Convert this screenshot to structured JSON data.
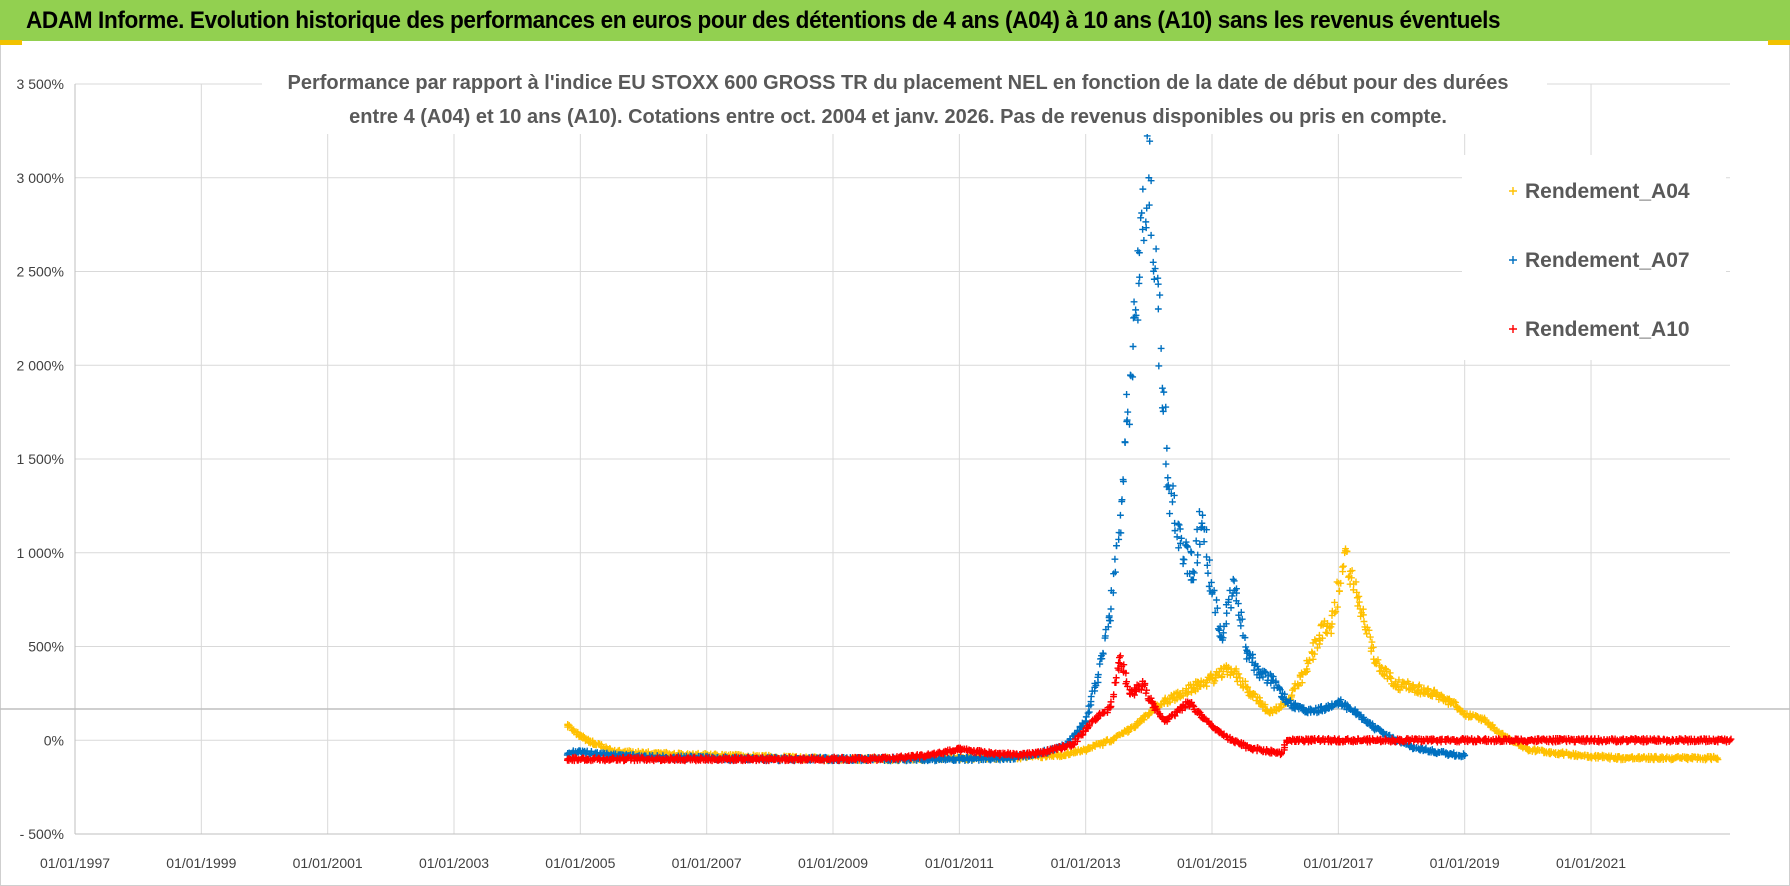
{
  "header": {
    "title": "ADAM Informe. Evolution historique des performances en euros pour des détentions de 4 ans (A04) à 10 ans (A10) sans les revenus éventuels"
  },
  "chart_data": {
    "type": "scatter",
    "title_lines": [
      "Performance par rapport à l'indice EU STOXX 600 GROSS TR  du placement NEL en fonction de la date de début pour des durées",
      "entre 4 (A04) et 10 ans (A10). Cotations entre oct. 2004 et janv. 2026. Pas de revenus disponibles ou pris en compte."
    ],
    "xlabel": "",
    "ylabel": "",
    "xlim": [
      1997.0,
      2023.2
    ],
    "ylim": [
      -500,
      3500
    ],
    "y_ticks": [
      -500,
      0,
      500,
      1000,
      1500,
      2000,
      2500,
      3000,
      3500
    ],
    "y_tick_labels": [
      "- 500%",
      "0%",
      "500%",
      "1 000%",
      "1 500%",
      "2 000%",
      "2 500%",
      "3 000%",
      "3 500%"
    ],
    "x_ticks": [
      1997,
      1999,
      2001,
      2003,
      2005,
      2007,
      2009,
      2011,
      2013,
      2015,
      2017,
      2019,
      2021
    ],
    "x_tick_labels": [
      "01/01/1997",
      "01/01/1999",
      "01/01/2001",
      "01/01/2003",
      "01/01/2005",
      "01/01/2007",
      "01/01/2009",
      "01/01/2011",
      "01/01/2013",
      "01/01/2015",
      "01/01/2017",
      "01/01/2019",
      "01/01/2021"
    ],
    "grid": true,
    "legend_position": "top-right",
    "marker": "+",
    "series": [
      {
        "name": "Rendement_A04",
        "color": "#ffc000",
        "x": [
          2004.8,
          2005.0,
          2005.5,
          2006.0,
          2007.0,
          2008.0,
          2009.0,
          2010.0,
          2011.0,
          2012.0,
          2012.6,
          2013.0,
          2013.4,
          2013.8,
          2014.1,
          2014.4,
          2014.7,
          2015.0,
          2015.3,
          2015.6,
          2015.9,
          2016.2,
          2016.5,
          2016.7,
          2016.9,
          2017.1,
          2017.3,
          2017.6,
          2017.9,
          2018.2,
          2018.5,
          2018.8,
          2019.0,
          2019.3,
          2019.6,
          2020.0,
          2020.5,
          2021.0,
          2021.5,
          2022.0,
          2022.5,
          2023.0
        ],
        "y": [
          80,
          20,
          -60,
          -70,
          -80,
          -90,
          -100,
          -100,
          -95,
          -90,
          -80,
          -50,
          0,
          80,
          180,
          230,
          280,
          330,
          380,
          260,
          150,
          200,
          380,
          560,
          620,
          1000,
          760,
          420,
          300,
          280,
          250,
          200,
          140,
          110,
          30,
          -50,
          -70,
          -85,
          -95,
          -95,
          -95,
          -95
        ]
      },
      {
        "name": "Rendement_A07",
        "color": "#0070c0",
        "x": [
          2004.8,
          2005.0,
          2005.5,
          2006.0,
          2007.0,
          2008.0,
          2009.0,
          2010.0,
          2011.0,
          2011.8,
          2012.3,
          2012.7,
          2013.0,
          2013.2,
          2013.4,
          2013.55,
          2013.65,
          2013.75,
          2013.85,
          2014.0,
          2014.15,
          2014.3,
          2014.5,
          2014.7,
          2014.85,
          2015.0,
          2015.15,
          2015.35,
          2015.55,
          2015.75,
          2015.95,
          2016.2,
          2016.5,
          2016.8,
          2017.0,
          2017.3,
          2017.6,
          2017.9,
          2018.2,
          2018.5,
          2018.8,
          2019.0
        ],
        "y": [
          -70,
          -60,
          -80,
          -90,
          -95,
          -100,
          -100,
          -100,
          -100,
          -95,
          -70,
          -20,
          100,
          350,
          700,
          1200,
          1700,
          2100,
          2600,
          3000,
          2300,
          1400,
          1050,
          900,
          1200,
          780,
          550,
          850,
          480,
          350,
          320,
          200,
          150,
          170,
          210,
          140,
          60,
          0,
          -40,
          -60,
          -75,
          -80
        ]
      },
      {
        "name": "Rendement_A10",
        "color": "#ff0000",
        "x": [
          2004.8,
          2005.5,
          2006.5,
          2007.5,
          2008.5,
          2009.5,
          2010.0,
          2010.5,
          2011.0,
          2011.5,
          2012.0,
          2012.4,
          2012.8,
          2013.1,
          2013.4,
          2013.55,
          2013.7,
          2013.9,
          2014.05,
          2014.25,
          2014.45,
          2014.65,
          2014.85,
          2015.05,
          2015.3,
          2015.6,
          2015.9,
          2016.1,
          2016.2,
          2016.6,
          2017.0,
          2017.5,
          2018.0,
          2018.5,
          2019.0,
          2019.5,
          2020.0,
          2020.5,
          2021.0,
          2021.5,
          2022.0,
          2022.5,
          2023.0,
          2023.2
        ],
        "y": [
          -100,
          -100,
          -100,
          -100,
          -100,
          -100,
          -95,
          -80,
          -50,
          -70,
          -80,
          -60,
          -20,
          100,
          180,
          450,
          250,
          300,
          200,
          100,
          150,
          200,
          120,
          60,
          0,
          -40,
          -60,
          -70,
          0,
          0,
          0,
          0,
          0,
          0,
          0,
          0,
          0,
          0,
          0,
          0,
          0,
          0,
          0,
          0
        ]
      }
    ]
  }
}
